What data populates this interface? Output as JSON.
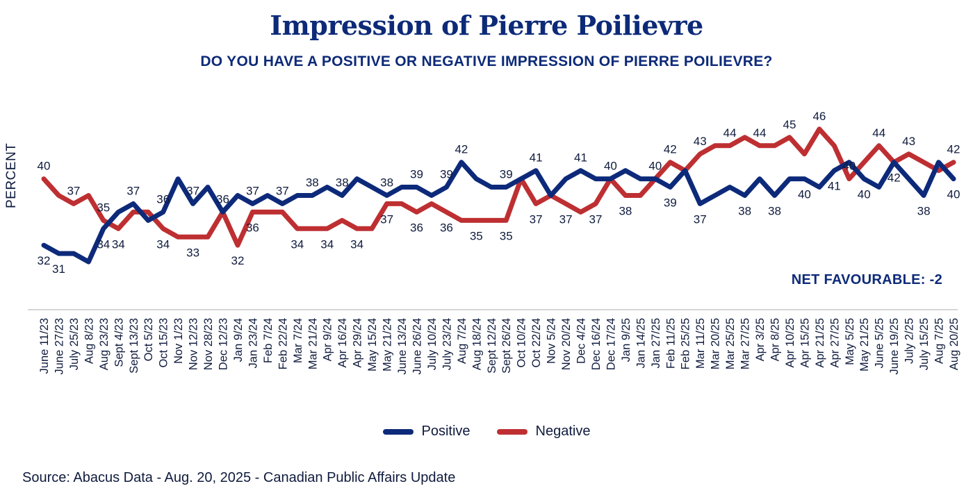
{
  "chart_data": {
    "type": "line",
    "title": "Impression of Pierre Poilievre",
    "subtitle": "DO YOU HAVE A POSITIVE OR NEGATIVE IMPRESSION OF PIERRE POILIEVRE?",
    "xlabel": "",
    "ylabel": "PERCENT",
    "ylim": [
      28,
      48
    ],
    "grid": false,
    "legend_position": "bottom-center",
    "annotation": "NET FAVOURABLE: -2",
    "source": "Source: Abacus Data - Aug. 20, 2025 - Canadian Public Affairs Update",
    "x": [
      "June 11/23",
      "June 27/23",
      "July 25/23",
      "Aug 8/23",
      "Aug 23/23",
      "Sept 4/23",
      "Sept 13/23",
      "Oct 5/23",
      "Oct 15/23",
      "Nov 1/23",
      "Nov 12/23",
      "Nov 28/23",
      "Dec 12/23",
      "Jan 9/24",
      "Jan 23/24",
      "Feb 7/24",
      "Feb 22/24",
      "Mar 7/24",
      "Mar 21/24",
      "Apr 9/24",
      "Apr 16/24",
      "Apr 29/24",
      "May 15/24",
      "May 21/24",
      "June 13/24",
      "June 26/24",
      "July 10/24",
      "July 23/24",
      "Aug 7/24",
      "Aug 18/24",
      "Sept 12/24",
      "Sept 26/24",
      "Oct 10/24",
      "Oct 22/24",
      "Nov 5/24",
      "Nov 20/24",
      "Dec 4/24",
      "Dec 16/24",
      "Dec 17/24",
      "Jan 9/25",
      "Jan 14/25",
      "Jan 27/25",
      "Feb 11/25",
      "Feb 25/25",
      "Mar 11/25",
      "Mar 20/25",
      "Mar 25/25",
      "Mar 27/25",
      "Apr 3/25",
      "Apr 8/25",
      "Apr 10/25",
      "Apr 15/25",
      "Apr 21/25",
      "Apr 27/25",
      "May 5/25",
      "May 21/25",
      "June 5/25",
      "June 19/25",
      "July 2/25",
      "July 15/25",
      "Aug 7/25",
      "Aug 20/25"
    ],
    "series": [
      {
        "name": "Positive",
        "color": "#0d2a7a",
        "values": [
          32,
          31,
          31,
          30,
          34,
          36,
          37,
          35,
          36,
          40,
          37,
          39,
          36,
          38,
          37,
          38,
          37,
          38,
          38,
          39,
          38,
          40,
          39,
          38,
          39,
          39,
          38,
          39,
          42,
          40,
          39,
          39,
          40,
          41,
          38,
          40,
          41,
          40,
          40,
          41,
          40,
          40,
          39,
          41,
          37,
          38,
          39,
          38,
          40,
          38,
          40,
          40,
          39,
          41,
          42,
          40,
          39,
          42,
          40,
          38,
          42,
          40
        ],
        "labels": [
          {
            "i": 0,
            "pos": "below"
          },
          {
            "i": 1,
            "pos": "below"
          },
          {
            "i": 4,
            "pos": "below"
          },
          {
            "i": 6,
            "pos": "above"
          },
          {
            "i": 8,
            "pos": "above"
          },
          {
            "i": 10,
            "pos": "above"
          },
          {
            "i": 12,
            "pos": "above"
          },
          {
            "i": 14,
            "pos": "above"
          },
          {
            "i": 16,
            "pos": "above"
          },
          {
            "i": 18,
            "pos": "above"
          },
          {
            "i": 20,
            "pos": "above"
          },
          {
            "i": 23,
            "pos": "above"
          },
          {
            "i": 25,
            "pos": "above"
          },
          {
            "i": 27,
            "pos": "above"
          },
          {
            "i": 28,
            "pos": "above"
          },
          {
            "i": 31,
            "pos": "above"
          },
          {
            "i": 33,
            "pos": "above"
          },
          {
            "i": 36,
            "pos": "above"
          },
          {
            "i": 38,
            "pos": "above"
          },
          {
            "i": 41,
            "pos": "above"
          },
          {
            "i": 42,
            "pos": "below"
          },
          {
            "i": 44,
            "pos": "below"
          },
          {
            "i": 47,
            "pos": "below"
          },
          {
            "i": 49,
            "pos": "below"
          },
          {
            "i": 51,
            "pos": "below"
          },
          {
            "i": 53,
            "pos": "below"
          },
          {
            "i": 55,
            "pos": "below"
          },
          {
            "i": 57,
            "pos": "below"
          },
          {
            "i": 59,
            "pos": "below"
          },
          {
            "i": 61,
            "pos": "below"
          }
        ]
      },
      {
        "name": "Negative",
        "color": "#be2f32",
        "values": [
          40,
          38,
          37,
          38,
          35,
          34,
          36,
          36,
          34,
          33,
          33,
          33,
          36,
          32,
          36,
          36,
          36,
          34,
          34,
          34,
          35,
          34,
          34,
          37,
          37,
          36,
          37,
          36,
          35,
          35,
          35,
          35,
          40,
          37,
          38,
          37,
          36,
          37,
          40,
          38,
          38,
          40,
          42,
          41,
          43,
          44,
          44,
          45,
          44,
          44,
          45,
          43,
          46,
          44,
          40,
          42,
          44,
          42,
          43,
          42,
          41,
          42
        ],
        "labels": [
          {
            "i": 0,
            "pos": "above"
          },
          {
            "i": 2,
            "pos": "above"
          },
          {
            "i": 4,
            "pos": "above"
          },
          {
            "i": 5,
            "pos": "below"
          },
          {
            "i": 8,
            "pos": "below"
          },
          {
            "i": 10,
            "pos": "below"
          },
          {
            "i": 13,
            "pos": "below"
          },
          {
            "i": 14,
            "pos": "below"
          },
          {
            "i": 17,
            "pos": "below"
          },
          {
            "i": 19,
            "pos": "below"
          },
          {
            "i": 21,
            "pos": "below"
          },
          {
            "i": 23,
            "pos": "below"
          },
          {
            "i": 25,
            "pos": "below"
          },
          {
            "i": 27,
            "pos": "below"
          },
          {
            "i": 29,
            "pos": "below"
          },
          {
            "i": 31,
            "pos": "below"
          },
          {
            "i": 33,
            "pos": "below"
          },
          {
            "i": 35,
            "pos": "below"
          },
          {
            "i": 37,
            "pos": "below"
          },
          {
            "i": 39,
            "pos": "below"
          },
          {
            "i": 42,
            "pos": "above"
          },
          {
            "i": 44,
            "pos": "above"
          },
          {
            "i": 46,
            "pos": "above"
          },
          {
            "i": 48,
            "pos": "above"
          },
          {
            "i": 50,
            "pos": "above"
          },
          {
            "i": 52,
            "pos": "above"
          },
          {
            "i": 54,
            "pos": "above"
          },
          {
            "i": 56,
            "pos": "above"
          },
          {
            "i": 58,
            "pos": "above"
          },
          {
            "i": 61,
            "pos": "above"
          }
        ]
      }
    ]
  },
  "legend": {
    "items": [
      {
        "label": "Positive",
        "color": "#0d2a7a"
      },
      {
        "label": "Negative",
        "color": "#be2f32"
      }
    ]
  }
}
